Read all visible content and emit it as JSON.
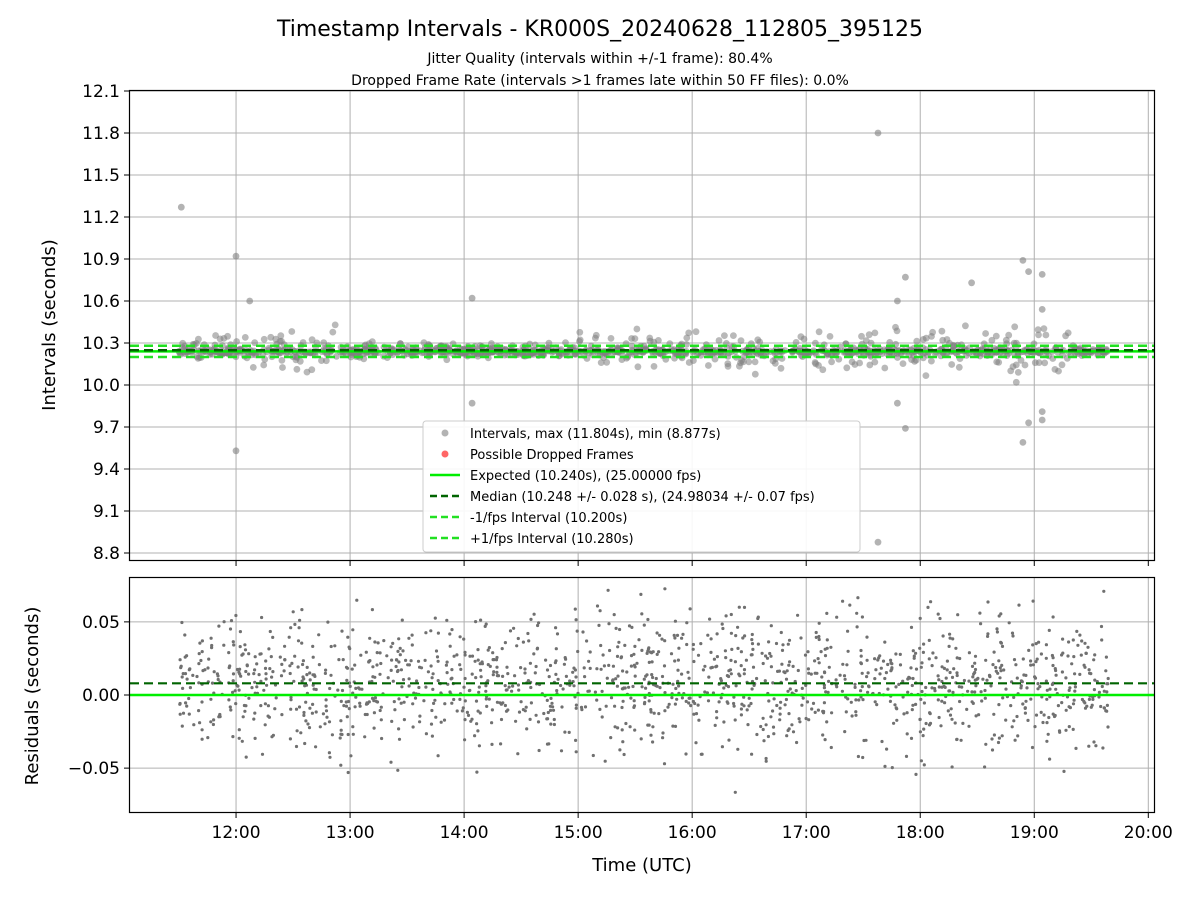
{
  "chart_data": [
    {
      "type": "scatter",
      "title": "Timestamp Intervals - KR000S_20240628_112805_395125",
      "subtitle_lines": [
        "Jitter Quality (intervals within +/-1 frame): 80.4%",
        "Dropped Frame Rate (intervals >1 frames late within 50 FF files): 0.0%"
      ],
      "ylabel": "Intervals (seconds)",
      "xlim_hours": [
        11.07,
        20.05
      ],
      "ylim": [
        8.75,
        12.1
      ],
      "yticks": [
        "8.8",
        "9.1",
        "9.4",
        "9.7",
        "10.0",
        "10.3",
        "10.6",
        "10.9",
        "11.2",
        "11.5",
        "11.8",
        "12.1"
      ],
      "grid": true,
      "legend_placement": "lower-center",
      "legend": [
        "Intervals, max (11.804s), min (8.877s)",
        "Possible Dropped Frames",
        "Expected (10.240s), (25.00000 fps)",
        "Median (10.248 +/- 0.028 s), (24.98034 +/- 0.07 fps)",
        "-1/fps Interval (10.200s)",
        "+1/fps Interval (10.280s)"
      ],
      "reference_lines": {
        "expected": 10.24,
        "median": 10.248,
        "minus_1_fps": 10.2,
        "plus_1_fps": 10.28
      },
      "data_range_hours": [
        11.5,
        19.65
      ],
      "outliers": [
        {
          "x": 11.52,
          "y": 11.27
        },
        {
          "x": 12.0,
          "y": 10.92
        },
        {
          "x": 12.0,
          "y": 9.53
        },
        {
          "x": 12.12,
          "y": 10.6
        },
        {
          "x": 14.07,
          "y": 10.62
        },
        {
          "x": 14.07,
          "y": 9.87
        },
        {
          "x": 17.63,
          "y": 11.8
        },
        {
          "x": 17.63,
          "y": 8.877
        },
        {
          "x": 17.87,
          "y": 10.77
        },
        {
          "x": 17.87,
          "y": 9.69
        },
        {
          "x": 18.45,
          "y": 10.73
        },
        {
          "x": 18.9,
          "y": 10.89
        },
        {
          "x": 18.95,
          "y": 10.81
        },
        {
          "x": 19.07,
          "y": 10.79
        },
        {
          "x": 18.9,
          "y": 9.59
        },
        {
          "x": 19.07,
          "y": 9.75
        },
        {
          "x": 19.07,
          "y": 9.81
        },
        {
          "x": 18.95,
          "y": 9.73
        },
        {
          "x": 17.8,
          "y": 10.6
        },
        {
          "x": 17.8,
          "y": 9.87
        },
        {
          "x": 19.07,
          "y": 10.54
        }
      ],
      "colors": {
        "intervals": "#808080",
        "dropped": "#ff0000",
        "expected": "#00ee00",
        "median": "#006400",
        "fps_bounds": "#22e022"
      }
    },
    {
      "type": "scatter",
      "xlabel": "Time (UTC)",
      "ylabel": "Residuals (seconds)",
      "xticks": [
        "12:00",
        "13:00",
        "14:00",
        "15:00",
        "16:00",
        "17:00",
        "18:00",
        "19:00",
        "20:00"
      ],
      "xtick_hours": [
        12,
        13,
        14,
        15,
        16,
        17,
        18,
        19,
        20
      ],
      "ylim": [
        -0.08,
        0.08
      ],
      "yticks": [
        "−0.05",
        "0.00",
        "0.05"
      ],
      "grid": true,
      "reference_lines": {
        "expected": 0.0,
        "median": 0.008
      },
      "colors": {
        "points": "#707070",
        "expected": "#00ee00",
        "median": "#006400"
      }
    }
  ]
}
